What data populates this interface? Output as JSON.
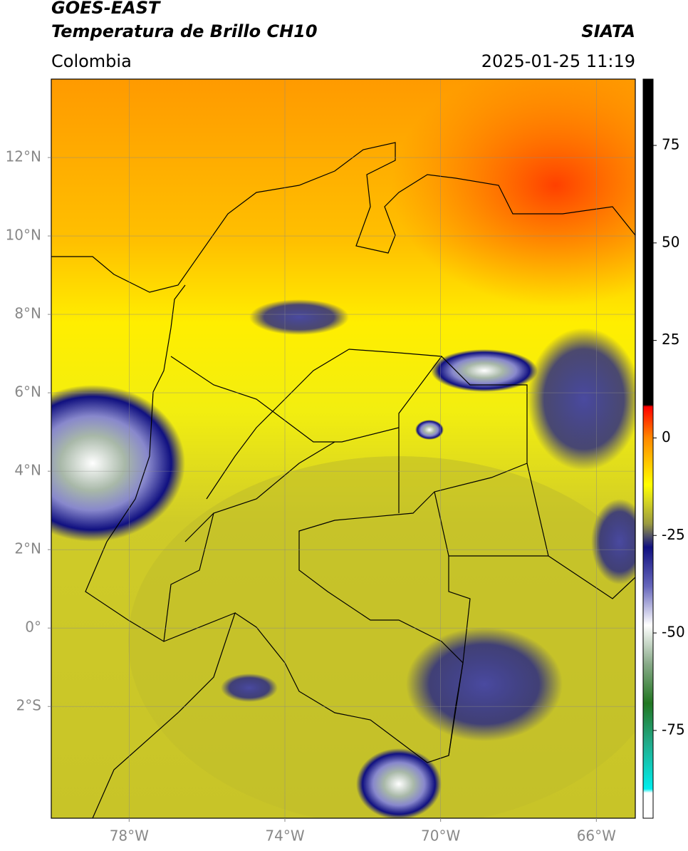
{
  "header": {
    "title": "GOES-EAST",
    "subtitle": "Temperatura de Brillo CH10",
    "source": "SIATA",
    "region": "Colombia",
    "datetime": "2025-01-25 11:19"
  },
  "map": {
    "xlim": [
      -80,
      -65
    ],
    "ylim": [
      -4.85,
      14
    ],
    "xticks": [
      {
        "value": -78,
        "label": "78°W"
      },
      {
        "value": -74,
        "label": "74°W"
      },
      {
        "value": -70,
        "label": "70°W"
      },
      {
        "value": -66,
        "label": "66°W"
      }
    ],
    "yticks": [
      {
        "value": 12,
        "label": "12°N"
      },
      {
        "value": 10,
        "label": "10°N"
      },
      {
        "value": 8,
        "label": "8°N"
      },
      {
        "value": 6,
        "label": "6°N"
      },
      {
        "value": 4,
        "label": "4°N"
      },
      {
        "value": 2,
        "label": "2°N"
      },
      {
        "value": 0,
        "label": "0°"
      },
      {
        "value": -2,
        "label": "2°S"
      }
    ],
    "grid": true,
    "colorbar": {
      "lim": [
        -97.5,
        92
      ],
      "ticks": [
        75,
        50,
        25,
        0,
        -25,
        -50,
        -75
      ],
      "colors": [
        {
          "value": 92,
          "color": "#000000"
        },
        {
          "value": 8.5,
          "color": "#000000"
        },
        {
          "value": 8,
          "color": "#ff0000"
        },
        {
          "value": 0,
          "color": "#ff8800"
        },
        {
          "value": -12,
          "color": "#ffff00"
        },
        {
          "value": -16,
          "color": "#d8d820"
        },
        {
          "value": -22,
          "color": "#9a9a40"
        },
        {
          "value": -25,
          "color": "#555566"
        },
        {
          "value": -28,
          "color": "#101080"
        },
        {
          "value": -38,
          "color": "#6666bb"
        },
        {
          "value": -48,
          "color": "#ffffff"
        },
        {
          "value": -58,
          "color": "#88aa88"
        },
        {
          "value": -68,
          "color": "#227722"
        },
        {
          "value": -78,
          "color": "#22aa88"
        },
        {
          "value": -90,
          "color": "#00eeee"
        },
        {
          "value": -91,
          "color": "#ffffff"
        }
      ]
    }
  }
}
